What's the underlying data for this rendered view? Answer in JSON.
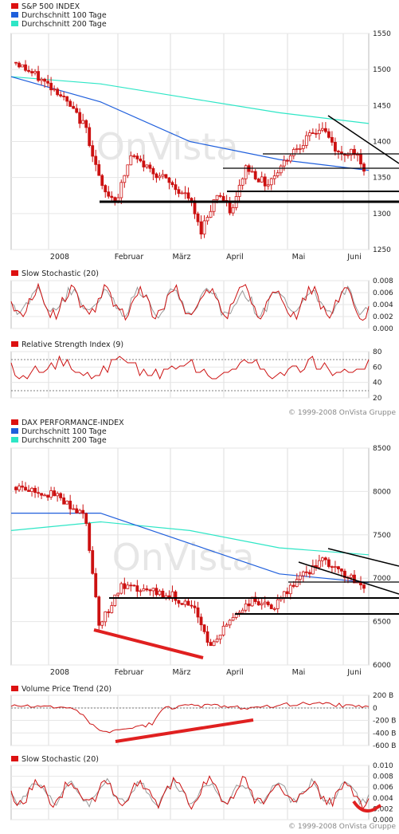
{
  "sp500": {
    "legend": [
      {
        "label": "S&P 500 INDEX",
        "color": "#dd1111"
      },
      {
        "label": "Durchschnitt 100 Tage",
        "color": "#1f5fdc"
      },
      {
        "label": "Durchschnitt 200 Tage",
        "color": "#2ee6c6"
      }
    ],
    "watermark": "OnVista",
    "y_ticks": [
      "1550",
      "1500",
      "1450",
      "1400",
      "1350",
      "1300",
      "1250"
    ],
    "month_labels": [
      "2008",
      "Februar",
      "März",
      "April",
      "Mai",
      "Juni"
    ]
  },
  "sp_stoch": {
    "legend": [
      {
        "label": "Slow Stochastic (20)",
        "color": "#dd1111"
      }
    ],
    "y_ticks": [
      "0.008",
      "0.006",
      "0.004",
      "0.002",
      "0.000"
    ]
  },
  "sp_rsi": {
    "legend": [
      {
        "label": "Relative Strength Index (9)",
        "color": "#dd1111"
      }
    ],
    "y_ticks": [
      "80",
      "60",
      "40",
      "20"
    ]
  },
  "copyright_top": "© 1999-2008 OnVista Gruppe",
  "dax": {
    "legend": [
      {
        "label": "DAX PERFORMANCE-INDEX",
        "color": "#dd1111"
      },
      {
        "label": "Durchschnitt 100 Tage",
        "color": "#1f5fdc"
      },
      {
        "label": "Durchschnitt 200 Tage",
        "color": "#2ee6c6"
      }
    ],
    "watermark": "OnVista",
    "y_ticks": [
      "8500",
      "8000",
      "7500",
      "7000",
      "6500",
      "6000"
    ],
    "month_labels": [
      "2008",
      "Februar",
      "März",
      "April",
      "Mai",
      "Juni"
    ]
  },
  "dax_vpt": {
    "legend": [
      {
        "label": "Volume Price Trend (20)",
        "color": "#dd1111"
      }
    ],
    "y_ticks": [
      "200 B",
      "0",
      "-200 B",
      "-400 B",
      "-600 B"
    ]
  },
  "dax_stoch": {
    "legend": [
      {
        "label": "Slow Stochastic (20)",
        "color": "#dd1111"
      }
    ],
    "y_ticks": [
      "0.010",
      "0.008",
      "0.006",
      "0.004",
      "0.002",
      "0.000"
    ]
  },
  "copyright_bottom": "© 1999-2008 OnVista Gruppe",
  "chart_data": [
    {
      "type": "candlestick",
      "series": [
        {
          "name": "S&P 500 INDEX"
        },
        {
          "name": "Durchschnitt 100 Tage"
        },
        {
          "name": "Durchschnitt 200 Tage"
        }
      ],
      "x_labels": [
        "2008",
        "Februar",
        "März",
        "April",
        "Mai",
        "Juni"
      ],
      "ylim": [
        1250,
        1550
      ],
      "approx_path": [
        [
          0,
          1510
        ],
        [
          0.12,
          1470
        ],
        [
          0.2,
          1420
        ],
        [
          0.25,
          1330
        ],
        [
          0.29,
          1320
        ],
        [
          0.33,
          1380
        ],
        [
          0.42,
          1350
        ],
        [
          0.5,
          1320
        ],
        [
          0.53,
          1275
        ],
        [
          0.58,
          1330
        ],
        [
          0.62,
          1300
        ],
        [
          0.66,
          1365
        ],
        [
          0.72,
          1340
        ],
        [
          0.8,
          1390
        ],
        [
          0.88,
          1420
        ],
        [
          0.93,
          1380
        ],
        [
          0.97,
          1390
        ],
        [
          1,
          1355
        ]
      ],
      "ma100": [
        [
          0,
          1490
        ],
        [
          0.25,
          1455
        ],
        [
          0.5,
          1400
        ],
        [
          0.75,
          1375
        ],
        [
          1,
          1360
        ]
      ],
      "ma200": [
        [
          0,
          1490
        ],
        [
          0.25,
          1480
        ],
        [
          0.5,
          1460
        ],
        [
          0.75,
          1440
        ],
        [
          1,
          1425
        ]
      ],
      "support_lines": [
        1355,
        1320,
        1310
      ],
      "resistance_line": [
        1375
      ]
    },
    {
      "type": "line",
      "series": [
        {
          "name": "Slow Stochastic (20)"
        }
      ],
      "ylim": [
        0,
        0.008
      ]
    },
    {
      "type": "line",
      "series": [
        {
          "name": "Relative Strength Index (9)"
        }
      ],
      "ylim": [
        20,
        80
      ]
    },
    {
      "type": "candlestick",
      "series": [
        {
          "name": "DAX PERFORMANCE-INDEX"
        },
        {
          "name": "Durchschnitt 100 Tage"
        },
        {
          "name": "Durchschnitt 200 Tage"
        }
      ],
      "x_labels": [
        "2008",
        "Februar",
        "März",
        "April",
        "Mai",
        "Juni"
      ],
      "ylim": [
        6000,
        8500
      ],
      "approx_path": [
        [
          0,
          8050
        ],
        [
          0.12,
          7950
        ],
        [
          0.2,
          7700
        ],
        [
          0.24,
          6450
        ],
        [
          0.3,
          6900
        ],
        [
          0.38,
          6850
        ],
        [
          0.45,
          6800
        ],
        [
          0.52,
          6600
        ],
        [
          0.56,
          6200
        ],
        [
          0.62,
          6550
        ],
        [
          0.68,
          6750
        ],
        [
          0.74,
          6650
        ],
        [
          0.8,
          6950
        ],
        [
          0.88,
          7200
        ],
        [
          0.94,
          7050
        ],
        [
          1,
          6900
        ]
      ],
      "ma100": [
        [
          0,
          7750
        ],
        [
          0.25,
          7750
        ],
        [
          0.5,
          7400
        ],
        [
          0.75,
          7050
        ],
        [
          1,
          6950
        ]
      ],
      "ma200": [
        [
          0,
          7550
        ],
        [
          0.25,
          7650
        ],
        [
          0.5,
          7550
        ],
        [
          0.75,
          7350
        ],
        [
          1,
          7270
        ]
      ],
      "support_lines": [
        6850,
        6650,
        6500
      ]
    },
    {
      "type": "line",
      "series": [
        {
          "name": "Volume Price Trend (20)"
        }
      ],
      "ylim": [
        -600,
        200
      ]
    },
    {
      "type": "line",
      "series": [
        {
          "name": "Slow Stochastic (20)"
        }
      ],
      "ylim": [
        0,
        0.01
      ]
    }
  ]
}
